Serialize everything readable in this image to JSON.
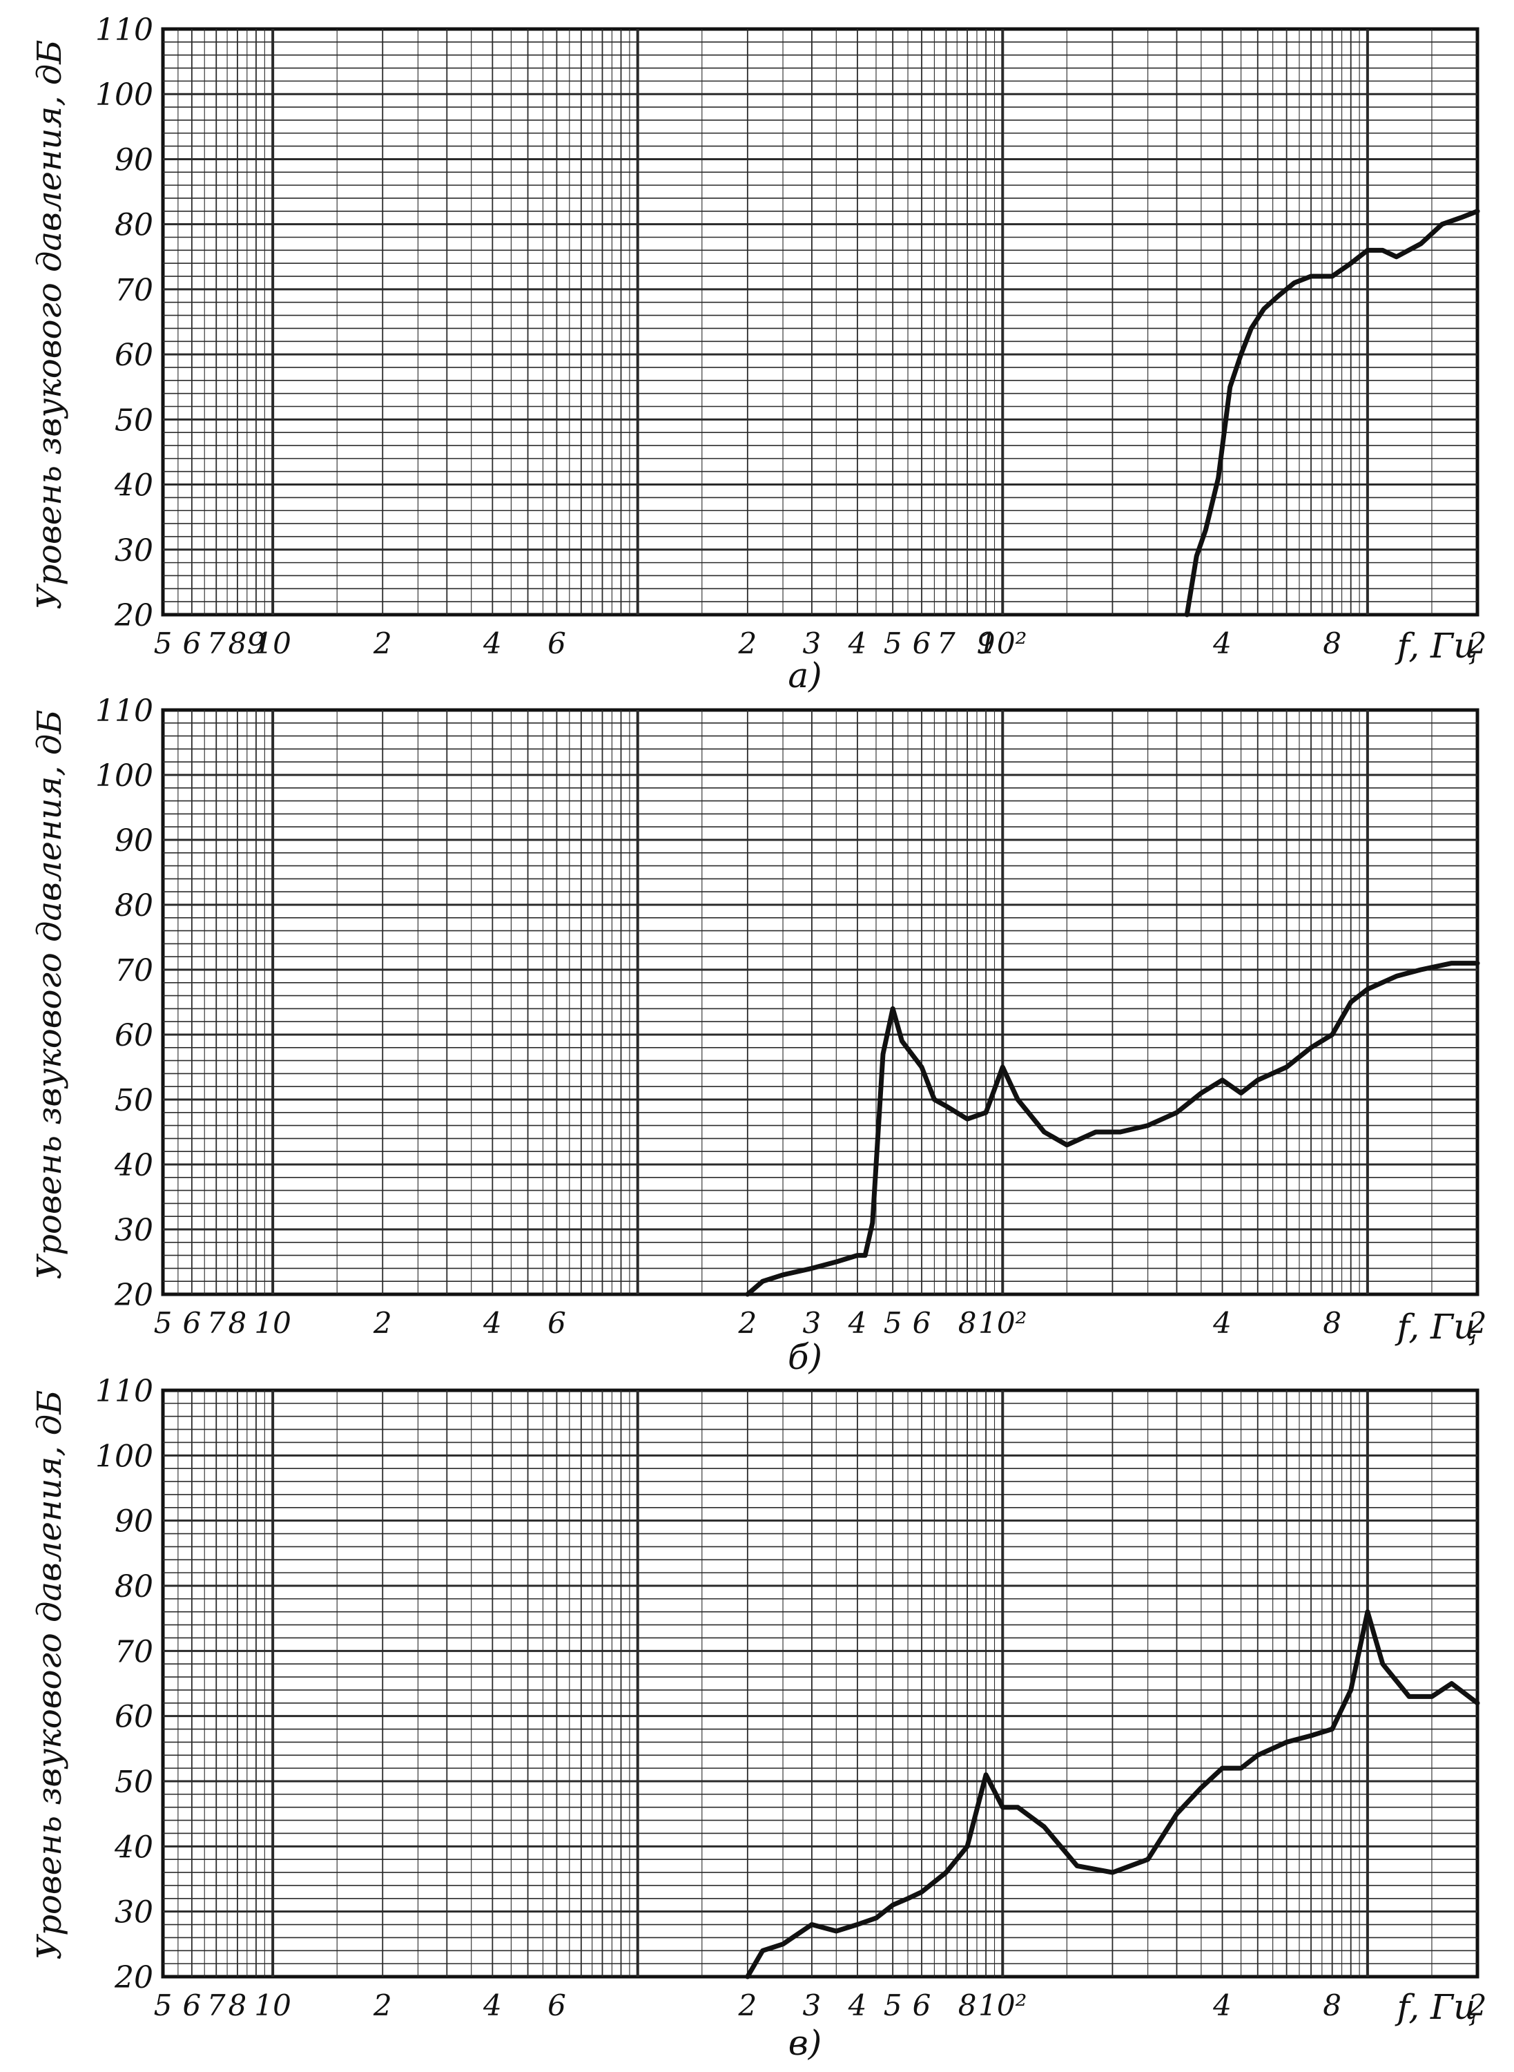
{
  "colors": {
    "ink": "#111111",
    "paper": "#ffffff",
    "grid": "#2a2a2a"
  },
  "chart_data": [
    {
      "type": "line",
      "panel_label": "а)",
      "ylabel": "Уровень звукового давления, дБ",
      "xlabel": "f, Гц",
      "ylim": [
        20,
        110
      ],
      "xlim": [
        5,
        20000
      ],
      "x_scale": "log",
      "grid": true,
      "y_ticks": [
        "20",
        "30",
        "40",
        "50",
        "60",
        "70",
        "80",
        "90",
        "100",
        "110"
      ],
      "x_tick_labels": [
        {
          "x": 5,
          "label": "5"
        },
        {
          "x": 6,
          "label": "6"
        },
        {
          "x": 7,
          "label": "7"
        },
        {
          "x": 8,
          "label": "8"
        },
        {
          "x": 9,
          "label": "9"
        },
        {
          "x": 10,
          "label": "10"
        },
        {
          "x": 20,
          "label": "2"
        },
        {
          "x": 40,
          "label": "4"
        },
        {
          "x": 60,
          "label": "6"
        },
        {
          "x": 200,
          "label": "2"
        },
        {
          "x": 300,
          "label": "3"
        },
        {
          "x": 400,
          "label": "4"
        },
        {
          "x": 500,
          "label": "5"
        },
        {
          "x": 600,
          "label": "6"
        },
        {
          "x": 700,
          "label": "7"
        },
        {
          "x": 900,
          "label": "9"
        },
        {
          "x": 1000,
          "label": "10²"
        },
        {
          "x": 4000,
          "label": "4"
        },
        {
          "x": 8000,
          "label": "8"
        },
        {
          "x": 20000,
          "label": "2"
        }
      ],
      "series": [
        {
          "x": [
            3200,
            3400,
            3600,
            3900,
            4200,
            4500,
            4800,
            5200,
            5700,
            6300,
            7000,
            8000,
            9000,
            10000,
            11000,
            12000,
            14000,
            16000,
            18000,
            20000
          ],
          "y": [
            20,
            29,
            33,
            41,
            55,
            60,
            64,
            67,
            69,
            71,
            72,
            72,
            74,
            76,
            76,
            75,
            77,
            80,
            81,
            82
          ]
        }
      ]
    },
    {
      "type": "line",
      "panel_label": "б)",
      "ylabel": "Уровень звукового давления, дБ",
      "xlabel": "f, Гц",
      "ylim": [
        20,
        110
      ],
      "xlim": [
        5,
        20000
      ],
      "x_scale": "log",
      "grid": true,
      "y_ticks": [
        "20",
        "30",
        "40",
        "50",
        "60",
        "70",
        "80",
        "90",
        "100",
        "110"
      ],
      "x_tick_labels": [
        {
          "x": 5,
          "label": "5"
        },
        {
          "x": 6,
          "label": "6"
        },
        {
          "x": 7,
          "label": "7"
        },
        {
          "x": 8,
          "label": "8"
        },
        {
          "x": 10,
          "label": "10"
        },
        {
          "x": 20,
          "label": "2"
        },
        {
          "x": 40,
          "label": "4"
        },
        {
          "x": 60,
          "label": "6"
        },
        {
          "x": 200,
          "label": "2"
        },
        {
          "x": 300,
          "label": "3"
        },
        {
          "x": 400,
          "label": "4"
        },
        {
          "x": 500,
          "label": "5"
        },
        {
          "x": 600,
          "label": "6"
        },
        {
          "x": 800,
          "label": "8"
        },
        {
          "x": 1000,
          "label": "10²"
        },
        {
          "x": 4000,
          "label": "4"
        },
        {
          "x": 8000,
          "label": "8"
        },
        {
          "x": 20000,
          "label": "2"
        }
      ],
      "series": [
        {
          "x": [
            200,
            220,
            250,
            300,
            350,
            400,
            420,
            440,
            470,
            500,
            530,
            600,
            650,
            700,
            800,
            900,
            1000,
            1100,
            1300,
            1500,
            1800,
            2100,
            2500,
            3000,
            3500,
            4000,
            4500,
            5000,
            6000,
            7000,
            8000,
            9000,
            10000,
            12000,
            14000,
            17000,
            20000
          ],
          "y": [
            20,
            22,
            23,
            24,
            25,
            26,
            26,
            31,
            57,
            64,
            59,
            55,
            50,
            49,
            47,
            48,
            55,
            50,
            45,
            43,
            45,
            45,
            46,
            48,
            51,
            53,
            51,
            53,
            55,
            58,
            60,
            65,
            67,
            69,
            70,
            71,
            71
          ]
        }
      ]
    },
    {
      "type": "line",
      "panel_label": "в)",
      "ylabel": "Уровень звукового давления, дБ",
      "xlabel": "f, Гц",
      "ylim": [
        20,
        110
      ],
      "xlim": [
        5,
        20000
      ],
      "x_scale": "log",
      "grid": true,
      "y_ticks": [
        "20",
        "30",
        "40",
        "50",
        "60",
        "70",
        "80",
        "90",
        "100",
        "110"
      ],
      "x_tick_labels": [
        {
          "x": 5,
          "label": "5"
        },
        {
          "x": 6,
          "label": "6"
        },
        {
          "x": 7,
          "label": "7"
        },
        {
          "x": 8,
          "label": "8"
        },
        {
          "x": 10,
          "label": "10"
        },
        {
          "x": 20,
          "label": "2"
        },
        {
          "x": 40,
          "label": "4"
        },
        {
          "x": 60,
          "label": "6"
        },
        {
          "x": 200,
          "label": "2"
        },
        {
          "x": 300,
          "label": "3"
        },
        {
          "x": 400,
          "label": "4"
        },
        {
          "x": 500,
          "label": "5"
        },
        {
          "x": 600,
          "label": "6"
        },
        {
          "x": 800,
          "label": "8"
        },
        {
          "x": 1000,
          "label": "10²"
        },
        {
          "x": 4000,
          "label": "4"
        },
        {
          "x": 8000,
          "label": "8"
        },
        {
          "x": 20000,
          "label": "2"
        }
      ],
      "series": [
        {
          "x": [
            200,
            220,
            250,
            300,
            350,
            400,
            450,
            500,
            550,
            600,
            700,
            800,
            900,
            1000,
            1100,
            1300,
            1600,
            2000,
            2500,
            3000,
            3500,
            4000,
            4500,
            5000,
            6000,
            7000,
            8000,
            9000,
            10000,
            11000,
            13000,
            15000,
            17000,
            20000
          ],
          "y": [
            20,
            24,
            25,
            28,
            27,
            28,
            29,
            31,
            32,
            33,
            36,
            40,
            51,
            46,
            46,
            43,
            37,
            36,
            38,
            45,
            49,
            52,
            52,
            54,
            56,
            57,
            58,
            64,
            76,
            68,
            63,
            63,
            65,
            62
          ]
        }
      ]
    }
  ]
}
